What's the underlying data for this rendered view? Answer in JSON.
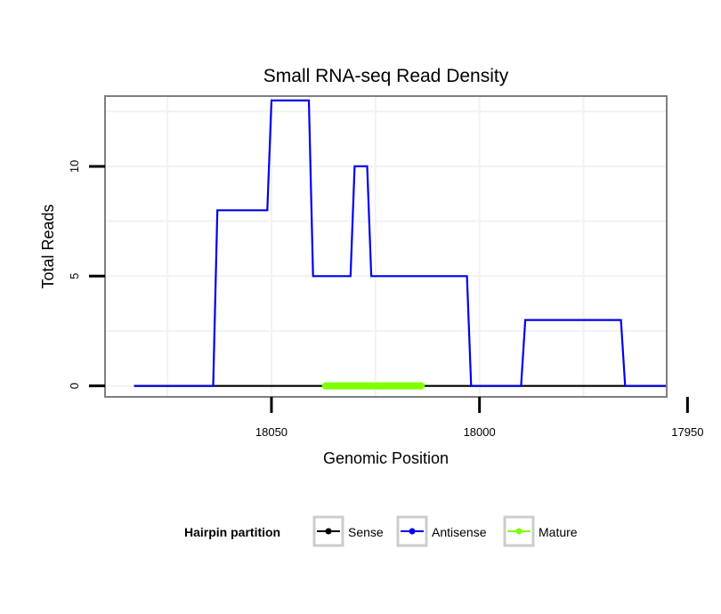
{
  "chart_data": {
    "type": "line",
    "title": "Small RNA-seq Read Density",
    "xlabel": "Genomic Position",
    "ylabel": "Total Reads",
    "x_reversed": true,
    "xlim": [
      18090,
      17955
    ],
    "ylim": [
      -0.5,
      13.2
    ],
    "x_ticks": [
      18050,
      18000,
      17950
    ],
    "x_tick_labels": [
      "18050",
      "18000",
      "17950"
    ],
    "y_ticks": [
      0,
      5,
      10
    ],
    "y_tick_labels": [
      "0",
      "5",
      "10"
    ],
    "legend": {
      "title": "Hairpin partition",
      "position": "bottom",
      "entries": [
        "Sense",
        "Antisense",
        "Mature"
      ]
    },
    "series": [
      {
        "name": "Sense",
        "color": "#000000",
        "x": [
          18083,
          17955
        ],
        "y": [
          0,
          0
        ]
      },
      {
        "name": "Antisense",
        "color": "#0000ee",
        "x": [
          18083,
          18064,
          18063,
          18051,
          18050,
          18041,
          18040,
          18031,
          18030,
          18027,
          18026,
          18022,
          18021,
          18003,
          18002,
          17990,
          17989,
          17966,
          17965,
          17955
        ],
        "y": [
          0,
          0,
          8,
          8,
          13,
          13,
          5,
          5,
          10,
          10,
          5,
          5,
          5,
          5,
          0,
          0,
          3,
          3,
          0,
          0
        ]
      },
      {
        "name": "Mature",
        "color": "#7fff00",
        "x": [
          18037,
          18014
        ],
        "y": [
          0,
          0
        ]
      }
    ]
  }
}
